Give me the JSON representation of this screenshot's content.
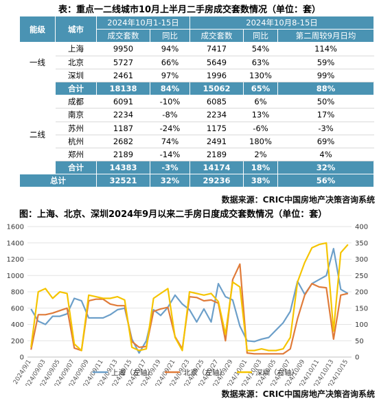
{
  "table_title": "表：重点一二线城市10月上半月二手房成交套数情况（单位：套）",
  "table_source": "数据来源：CRIC中国房地产决策咨询系统",
  "table": {
    "head_level": "能级",
    "head_city": "城市",
    "period_a": "2024年10月1-15日",
    "period_b": "2024年10月8-15日",
    "sub_a": [
      "成交套数",
      "同比"
    ],
    "sub_b": [
      "成交套数",
      "同比",
      "第二周较9月日均"
    ],
    "tier1": {
      "label": "一线",
      "rows": [
        {
          "city": "上海",
          "a_vol": "9950",
          "a_yoy": "94%",
          "b_vol": "7417",
          "b_yoy": "54%",
          "b_vs": "114%"
        },
        {
          "city": "北京",
          "a_vol": "5727",
          "a_yoy": "66%",
          "b_vol": "5649",
          "b_yoy": "63%",
          "b_vs": "59%"
        },
        {
          "city": "深圳",
          "a_vol": "2461",
          "a_yoy": "97%",
          "b_vol": "1996",
          "b_yoy": "130%",
          "b_vs": "99%"
        }
      ],
      "sum": {
        "city": "合计",
        "a_vol": "18138",
        "a_yoy": "84%",
        "b_vol": "15062",
        "b_yoy": "65%",
        "b_vs": "88%"
      }
    },
    "tier2": {
      "label": "二线",
      "rows": [
        {
          "city": "成都",
          "a_vol": "6091",
          "a_yoy": "-10%",
          "b_vol": "6085",
          "b_yoy": "6%",
          "b_vs": "50%"
        },
        {
          "city": "南京",
          "a_vol": "2234",
          "a_yoy": "-8%",
          "b_vol": "2234",
          "b_yoy": "13%",
          "b_vs": "17%"
        },
        {
          "city": "苏州",
          "a_vol": "1187",
          "a_yoy": "-24%",
          "b_vol": "1175",
          "b_yoy": "-6%",
          "b_vs": "-3%"
        },
        {
          "city": "杭州",
          "a_vol": "2682",
          "a_yoy": "74%",
          "b_vol": "2491",
          "b_yoy": "180%",
          "b_vs": "69%"
        },
        {
          "city": "郑州",
          "a_vol": "2189",
          "a_yoy": "-14%",
          "b_vol": "2189",
          "b_yoy": "2%",
          "b_vs": "4%"
        }
      ],
      "sum": {
        "city": "合计",
        "a_vol": "14383",
        "a_yoy": "-3%",
        "b_vol": "14174",
        "b_yoy": "18%",
        "b_vs": "32%"
      }
    },
    "total": {
      "label": "总计",
      "a_vol": "32521",
      "a_yoy": "32%",
      "b_vol": "29236",
      "b_yoy": "38%",
      "b_vs": "56%"
    }
  },
  "chart_title": "图：上海、北京、深圳2024年9月以来二手房日度成交套数情况（单位：套）",
  "chart_source": "数据来源：CRIC中国房地产决策咨询系统",
  "chart_data": {
    "type": "line",
    "x": [
      "2024/9/1",
      "2024/09/02",
      "2024/09/03",
      "2024/09/04",
      "2024/09/05",
      "2024/09/06",
      "2024/09/07",
      "2024/09/08",
      "2024/09/09",
      "2024/09/10",
      "2024/09/11",
      "2024/09/12",
      "2024/09/13",
      "2024/09/14",
      "2024/09/15",
      "2024/09/16",
      "2024/09/17",
      "2024/09/18",
      "2024/09/19",
      "2024/09/20",
      "2024/09/21",
      "2024/09/22",
      "2024/09/23",
      "2024/09/24",
      "2024/09/25",
      "2024/09/26",
      "2024/09/27",
      "2024/09/28",
      "2024/09/29",
      "2024/09/30",
      "2024/10/01",
      "2024/10/02",
      "2024/10/03",
      "2024/10/04",
      "2024/10/05",
      "2024/10/06",
      "2024/10/07",
      "2024/10/08",
      "2024/10/09",
      "2024/10/10",
      "2024/10/11",
      "2024/10/12",
      "2024/10/13",
      "2024/10/14",
      "2024/10/15"
    ],
    "xtick_labels": [
      "2024/9/1",
      "2024/09/03",
      "2024/09/05",
      "2024/09/07",
      "2024/09/09",
      "2024/09/11",
      "2024/09/13",
      "2024/09/15",
      "2024/09/17",
      "2024/09/19",
      "2024/09/21",
      "2024/09/23",
      "2024/09/25",
      "2024/09/27",
      "2024/09/29",
      "2024/10/01",
      "2024/10/03",
      "2024/10/05",
      "2024/10/07",
      "2024/10/09",
      "2024/10/11",
      "2024/10/13",
      "2024/10/15"
    ],
    "ylim_left": [
      0,
      1600
    ],
    "yticks_left": [
      0,
      200,
      400,
      600,
      800,
      1000,
      1200,
      1400,
      1600
    ],
    "ylim_right": [
      0,
      400
    ],
    "yticks_right": [
      0,
      50,
      100,
      150,
      200,
      250,
      300,
      350,
      400
    ],
    "grid": true,
    "legend_position": "bottom",
    "series": [
      {
        "name": "上海（左轴）",
        "axis": "left",
        "color": "#6c9fc9",
        "values": [
          590,
          440,
          400,
          500,
          500,
          530,
          720,
          690,
          480,
          480,
          480,
          520,
          580,
          600,
          220,
          50,
          200,
          580,
          510,
          610,
          760,
          650,
          580,
          430,
          590,
          430,
          900,
          740,
          700,
          380,
          200,
          190,
          220,
          240,
          330,
          420,
          560,
          930,
          770,
          900,
          950,
          1000,
          1330,
          830,
          780
        ]
      },
      {
        "name": "北京（左轴）",
        "axis": "left",
        "color": "#e07b39",
        "values": [
          90,
          520,
          520,
          540,
          570,
          600,
          110,
          80,
          690,
          710,
          710,
          650,
          630,
          630,
          190,
          120,
          130,
          560,
          590,
          610,
          250,
          100,
          740,
          730,
          690,
          700,
          660,
          200,
          950,
          1140,
          50,
          40,
          40,
          40,
          40,
          40,
          100,
          470,
          760,
          900,
          860,
          850,
          220,
          760,
          780
        ]
      },
      {
        "name": "深圳（右轴）",
        "axis": "right",
        "color": "#f5c400",
        "values": [
          30,
          200,
          210,
          180,
          200,
          195,
          40,
          20,
          190,
          185,
          180,
          180,
          185,
          175,
          30,
          20,
          25,
          180,
          195,
          210,
          60,
          20,
          200,
          195,
          190,
          195,
          170,
          70,
          230,
          215,
          20,
          20,
          25,
          20,
          20,
          25,
          60,
          230,
          290,
          335,
          345,
          350,
          80,
          320,
          345
        ]
      }
    ]
  }
}
